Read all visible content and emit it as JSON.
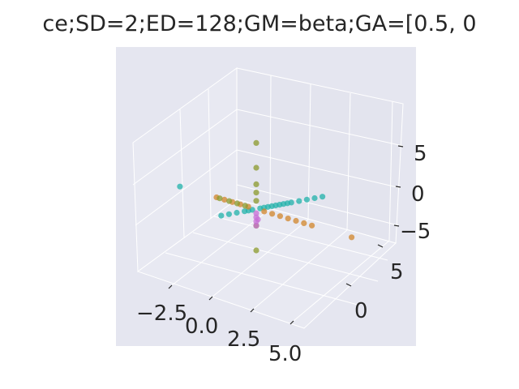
{
  "chart_data": {
    "type": "scatter",
    "title": "ce;SD=2;ED=128;GM=beta;GA=[0.5, 0",
    "xlabel": "",
    "ylabel": "",
    "zlabel": "",
    "x_ticks": [
      "−2.5",
      "0.0",
      "2.5",
      "5.0"
    ],
    "y_ticks": [
      "0",
      "5"
    ],
    "z_ticks": [
      "−5",
      "0",
      "5"
    ],
    "x_range": [
      -5,
      6
    ],
    "y_range": [
      -5,
      9
    ],
    "z_range": [
      -8,
      8
    ],
    "grid": true,
    "background": "#e5e6f0",
    "series": [
      {
        "color": "#20b2aa",
        "points": [
          [
            0,
            -4.5,
            0
          ],
          [
            0,
            -3.5,
            0
          ],
          [
            0,
            -2.5,
            0
          ],
          [
            0,
            -1.5,
            0
          ],
          [
            0,
            -1,
            0
          ],
          [
            0,
            -0.5,
            0
          ],
          [
            0,
            0.5,
            0
          ],
          [
            0,
            1,
            0
          ],
          [
            0,
            1.5,
            0
          ],
          [
            0,
            2,
            0
          ],
          [
            0,
            2.5,
            0
          ],
          [
            0,
            3,
            0
          ],
          [
            0,
            3.5,
            0
          ],
          [
            0,
            4,
            0
          ],
          [
            0,
            4.5,
            0
          ],
          [
            0,
            5.5,
            0
          ],
          [
            0,
            6.5,
            0
          ],
          [
            0,
            7.5,
            0
          ],
          [
            0,
            8.5,
            0
          ],
          [
            -4.8,
            0,
            0
          ]
        ]
      },
      {
        "color": "#d2842a",
        "points": [
          [
            -2.5,
            0,
            0
          ],
          [
            -2,
            0,
            0
          ],
          [
            -1.5,
            0,
            0
          ],
          [
            -1,
            0,
            0
          ],
          [
            -0.5,
            0,
            0
          ],
          [
            0.5,
            0,
            0
          ],
          [
            1,
            0,
            0
          ],
          [
            1.5,
            0,
            0
          ],
          [
            2,
            0,
            0
          ],
          [
            2.5,
            0,
            0
          ],
          [
            3,
            0,
            0
          ],
          [
            3.5,
            0,
            0
          ],
          [
            6,
            0,
            0
          ]
        ]
      },
      {
        "color": "#8b9a2b",
        "points": [
          [
            -2.3,
            0,
            0
          ],
          [
            -1.7,
            0,
            0
          ],
          [
            -1.2,
            0,
            0
          ],
          [
            -0.7,
            0,
            0
          ],
          [
            0,
            0,
            1
          ],
          [
            0,
            0,
            2
          ],
          [
            0,
            0,
            3
          ],
          [
            0,
            0,
            5
          ],
          [
            0,
            0,
            8
          ],
          [
            0,
            0,
            -2
          ],
          [
            0,
            0,
            -5
          ]
        ]
      },
      {
        "color": "#c76dd6",
        "points": [
          [
            0,
            0,
            -0.5
          ],
          [
            0,
            0,
            -1
          ],
          [
            0,
            0,
            -1.5
          ],
          [
            0,
            0,
            -2
          ],
          [
            0.1,
            0,
            -1.2
          ]
        ]
      }
    ]
  }
}
